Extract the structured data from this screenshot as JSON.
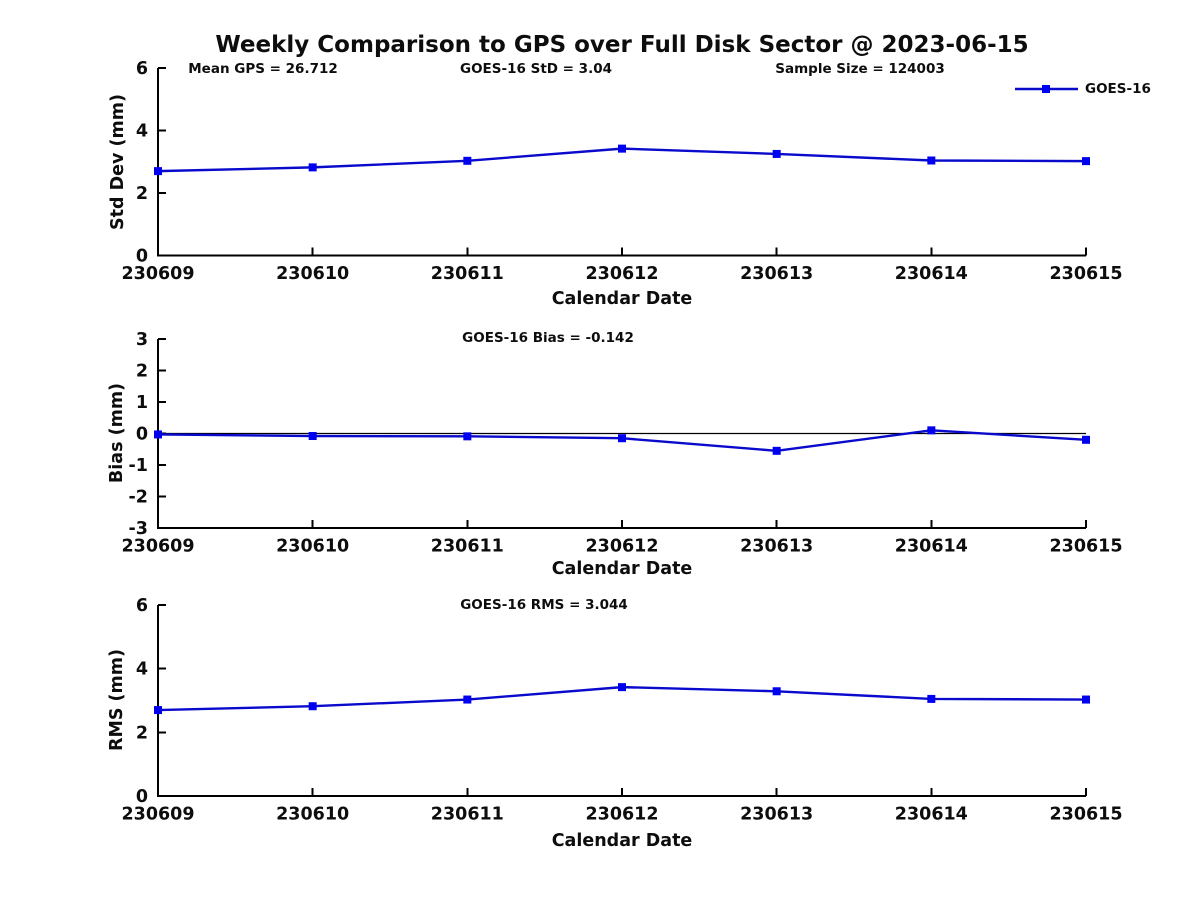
{
  "title": "Weekly Comparison to GPS over Full Disk Sector @ 2023-06-15",
  "legend": {
    "label": "GOES-16",
    "position": "top-right"
  },
  "colors": {
    "line": "#0a0acd",
    "marker": "#0000f0",
    "axis": "#000000",
    "zero_line": "#000000",
    "text": "#0d0d0d",
    "background": "#ffffff"
  },
  "chart_data": [
    {
      "type": "line",
      "name": "std-dev-vs-date",
      "annotations": [
        {
          "text": "Mean GPS = 26.712"
        },
        {
          "text": "GOES-16 StD = 3.04"
        },
        {
          "text": "Sample Size = 124003"
        }
      ],
      "categories": [
        "230609",
        "230610",
        "230611",
        "230612",
        "230613",
        "230614",
        "230615"
      ],
      "series": [
        {
          "name": "GOES-16",
          "values": [
            2.7,
            2.82,
            3.03,
            3.42,
            3.25,
            3.04,
            3.02
          ]
        }
      ],
      "xlabel": "Calendar Date",
      "ylabel": "Std Dev (mm)",
      "ylim": [
        0,
        6
      ],
      "yticks": [
        0,
        2,
        4,
        6
      ],
      "grid": false,
      "zero_line": false,
      "legend_position": "top-right"
    },
    {
      "type": "line",
      "name": "bias-vs-date",
      "annotations": [
        {
          "text": "GOES-16 Bias  = -0.142"
        }
      ],
      "categories": [
        "230609",
        "230610",
        "230611",
        "230612",
        "230613",
        "230614",
        "230615"
      ],
      "series": [
        {
          "name": "GOES-16",
          "values": [
            -0.03,
            -0.08,
            -0.09,
            -0.15,
            -0.55,
            0.1,
            -0.2
          ]
        }
      ],
      "xlabel": "Calendar Date",
      "ylabel": "Bias (mm)",
      "ylim": [
        -3,
        3
      ],
      "yticks": [
        -3,
        -2,
        -1,
        0,
        1,
        2,
        3
      ],
      "grid": false,
      "zero_line": true,
      "legend_position": "none"
    },
    {
      "type": "line",
      "name": "rms-vs-date",
      "annotations": [
        {
          "text": "GOES-16 RMS = 3.044"
        }
      ],
      "categories": [
        "230609",
        "230610",
        "230611",
        "230612",
        "230613",
        "230614",
        "230615"
      ],
      "series": [
        {
          "name": "GOES-16",
          "values": [
            2.7,
            2.82,
            3.03,
            3.42,
            3.29,
            3.05,
            3.03
          ]
        }
      ],
      "xlabel": "Calendar Date",
      "ylabel": "RMS (mm)",
      "ylim": [
        0,
        6
      ],
      "yticks": [
        0,
        2,
        4,
        6
      ],
      "grid": false,
      "zero_line": false,
      "legend_position": "none"
    }
  ]
}
